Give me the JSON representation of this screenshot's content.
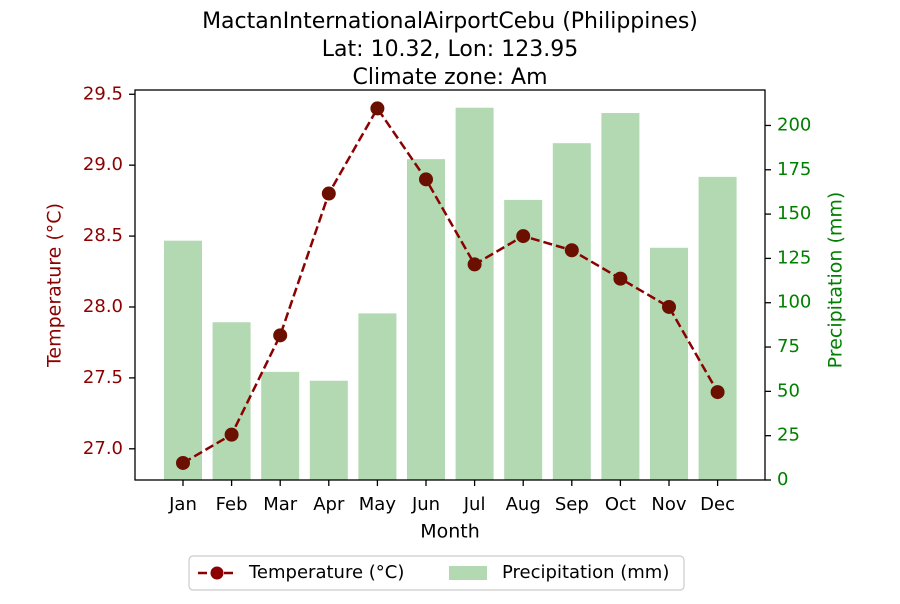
{
  "chart_data": {
    "type": "bar+line",
    "title_lines": [
      "MactanInternationalAirportCebu (Philippines)",
      "Lat: 10.32, Lon: 123.95",
      "Climate zone: Am"
    ],
    "categories": [
      "Jan",
      "Feb",
      "Mar",
      "Apr",
      "May",
      "Jun",
      "Jul",
      "Aug",
      "Sep",
      "Oct",
      "Nov",
      "Dec"
    ],
    "xlabel": "Month",
    "series": [
      {
        "name": "Temperature (°C)",
        "type": "line",
        "axis": "left",
        "values": [
          26.9,
          27.1,
          27.8,
          28.8,
          29.4,
          28.9,
          28.3,
          28.5,
          28.4,
          28.2,
          28.0,
          27.4
        ]
      },
      {
        "name": "Precipitation (mm)",
        "type": "bar",
        "axis": "right",
        "values": [
          135,
          89,
          61,
          56,
          94,
          181,
          210,
          158,
          190,
          207,
          131,
          171
        ]
      }
    ],
    "y_left": {
      "label": "Temperature (°C)",
      "ylim": [
        26.78,
        29.53
      ],
      "ticks": [
        27.0,
        27.5,
        28.0,
        28.5,
        29.0,
        29.5
      ],
      "tick_labels": [
        "27.0",
        "27.5",
        "28.0",
        "28.5",
        "29.0",
        "29.5"
      ]
    },
    "y_right": {
      "label": "Precipitation (mm)",
      "ylim": [
        0,
        220
      ],
      "ticks": [
        0,
        25,
        50,
        75,
        100,
        125,
        150,
        175,
        200
      ],
      "tick_labels": [
        "0",
        "25",
        "50",
        "75",
        "100",
        "125",
        "150",
        "175",
        "200"
      ]
    },
    "legend": {
      "placement": "bottom-center",
      "entries": [
        "Temperature (°C)",
        "Precipitation (mm)"
      ]
    },
    "grid": false,
    "colors": {
      "temperature_line": "#8b0000",
      "temperature_marker_face": "#6b1000",
      "precipitation_bar": "#b2d9b2",
      "left_axis": "#8b0000",
      "right_axis": "#008000",
      "axes": "#000000"
    }
  }
}
